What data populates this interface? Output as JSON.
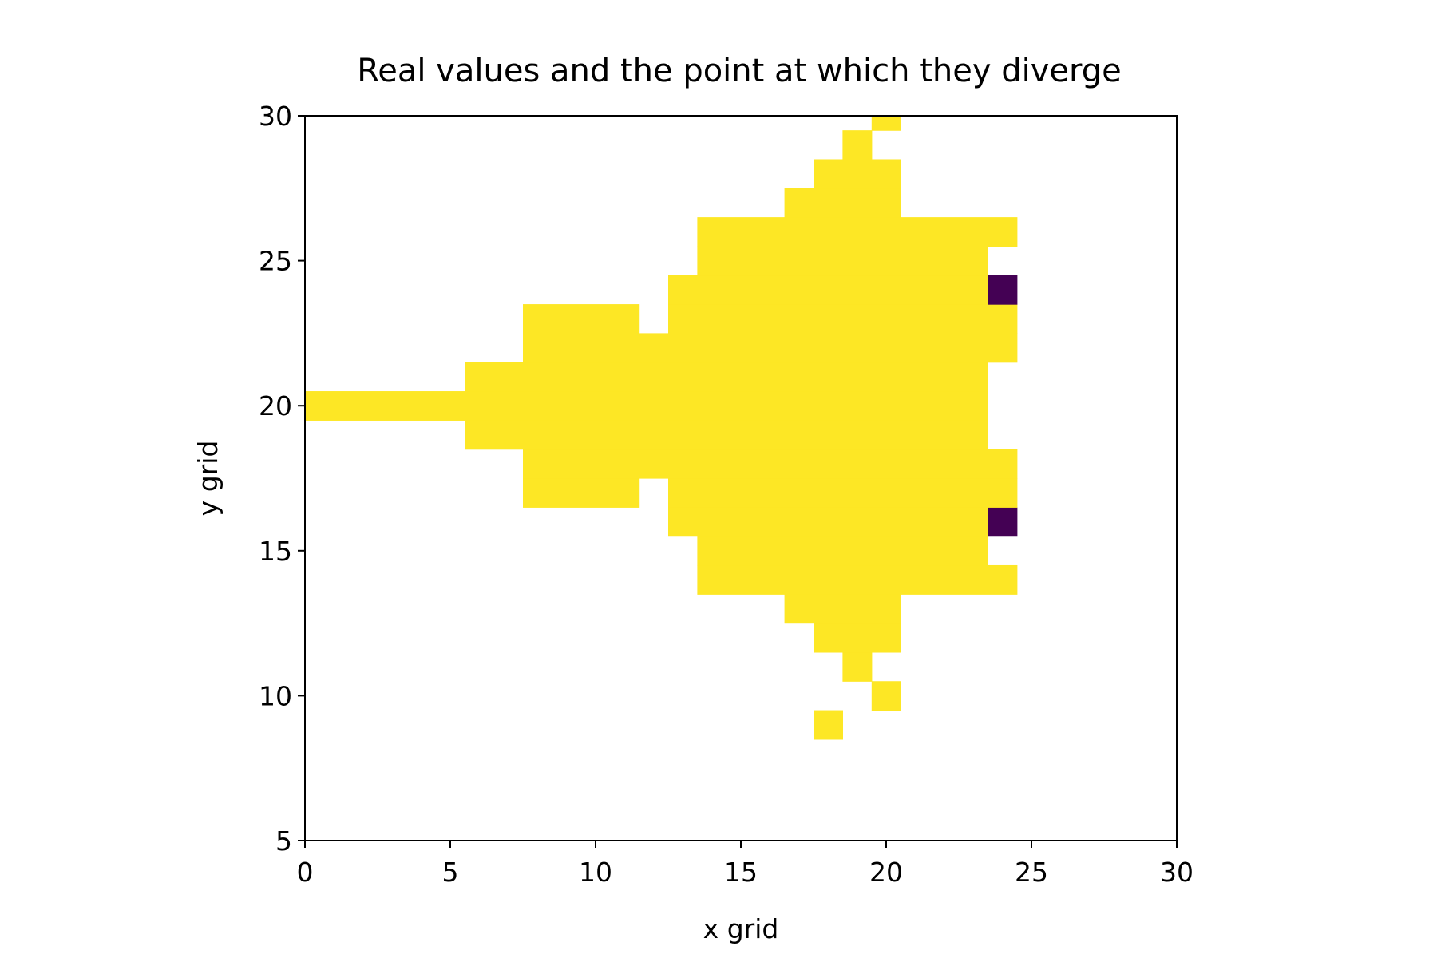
{
  "chart_data": {
    "type": "heatmap",
    "title": "Real values and the point at which they diverge",
    "xlabel": "x grid",
    "ylabel": "y grid",
    "xlim": [
      0,
      30
    ],
    "ylim": [
      5,
      30
    ],
    "xticks": [
      "0",
      "5",
      "10",
      "15",
      "20",
      "25",
      "30"
    ],
    "yticks": [
      "5",
      "10",
      "15",
      "20",
      "25",
      "30"
    ],
    "grid": false,
    "legend": "none",
    "colormap": "viridis",
    "colors": {
      "high": "#fde725",
      "low": "#440154",
      "background": "#ffffff"
    },
    "cell_value_scale": [
      0,
      1
    ],
    "rows": [
      {
        "y": 9,
        "cells": [
          [
            18,
            18,
            1
          ]
        ]
      },
      {
        "y": 10,
        "cells": [
          [
            20,
            20,
            1
          ]
        ]
      },
      {
        "y": 11,
        "cells": [
          [
            19,
            19,
            1
          ]
        ]
      },
      {
        "y": 12,
        "cells": [
          [
            18,
            20,
            1
          ]
        ]
      },
      {
        "y": 13,
        "cells": [
          [
            17,
            20,
            1
          ]
        ]
      },
      {
        "y": 14,
        "cells": [
          [
            14,
            24,
            1
          ]
        ]
      },
      {
        "y": 15,
        "cells": [
          [
            14,
            23,
            1
          ]
        ]
      },
      {
        "y": 16,
        "cells": [
          [
            13,
            23,
            1
          ],
          [
            24,
            24,
            0
          ]
        ]
      },
      {
        "y": 17,
        "cells": [
          [
            8,
            11,
            1
          ],
          [
            13,
            24,
            1
          ]
        ]
      },
      {
        "y": 18,
        "cells": [
          [
            8,
            24,
            1
          ]
        ]
      },
      {
        "y": 19,
        "cells": [
          [
            6,
            23,
            1
          ]
        ]
      },
      {
        "y": 20,
        "cells": [
          [
            0,
            23,
            1
          ]
        ]
      },
      {
        "y": 21,
        "cells": [
          [
            6,
            23,
            1
          ]
        ]
      },
      {
        "y": 22,
        "cells": [
          [
            8,
            24,
            1
          ]
        ]
      },
      {
        "y": 23,
        "cells": [
          [
            8,
            11,
            1
          ],
          [
            13,
            24,
            1
          ]
        ]
      },
      {
        "y": 24,
        "cells": [
          [
            13,
            23,
            1
          ],
          [
            24,
            24,
            0
          ]
        ]
      },
      {
        "y": 25,
        "cells": [
          [
            14,
            23,
            1
          ]
        ]
      },
      {
        "y": 26,
        "cells": [
          [
            14,
            24,
            1
          ]
        ]
      },
      {
        "y": 27,
        "cells": [
          [
            17,
            20,
            1
          ]
        ]
      },
      {
        "y": 28,
        "cells": [
          [
            18,
            20,
            1
          ]
        ]
      },
      {
        "y": 29,
        "cells": [
          [
            19,
            19,
            1
          ]
        ]
      },
      {
        "y": 30,
        "cells": [
          [
            20,
            20,
            1
          ]
        ]
      }
    ]
  }
}
